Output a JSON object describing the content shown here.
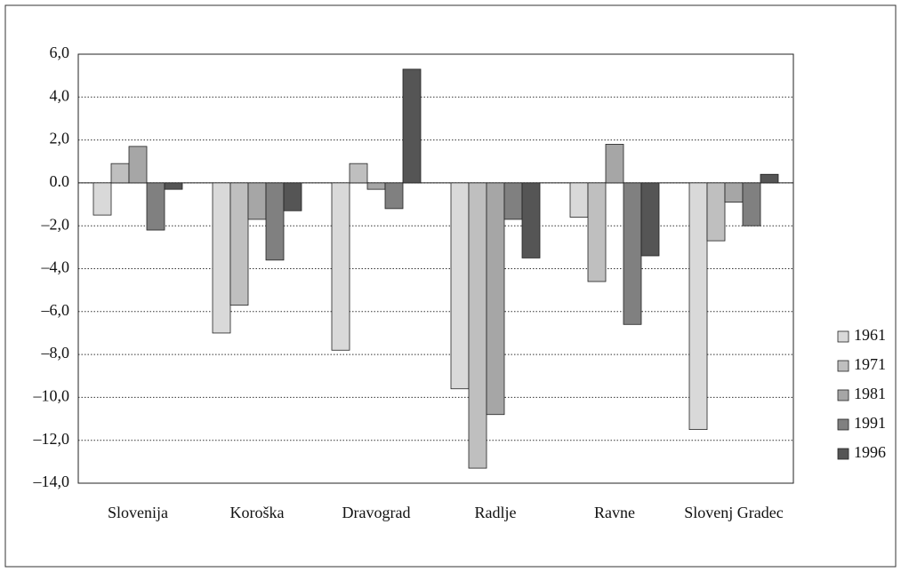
{
  "chart_data": {
    "type": "bar",
    "categories": [
      "Slovenija",
      "Koroška",
      "Dravograd",
      "Radlje",
      "Ravne",
      "Slovenj Gradec"
    ],
    "series": [
      {
        "name": "1961",
        "color": "#d9d9d9",
        "values": [
          -1.5,
          -7.0,
          -7.8,
          -9.6,
          -1.6,
          -11.5
        ]
      },
      {
        "name": "1971",
        "color": "#bfbfbf",
        "values": [
          0.9,
          -5.7,
          0.9,
          -13.3,
          -4.6,
          -2.7
        ]
      },
      {
        "name": "1981",
        "color": "#a6a6a6",
        "values": [
          1.7,
          -1.7,
          -0.3,
          -10.8,
          1.8,
          -0.9
        ]
      },
      {
        "name": "1991",
        "color": "#808080",
        "values": [
          -2.2,
          -3.6,
          -1.2,
          -1.7,
          -6.6,
          -2.0
        ]
      },
      {
        "name": "1996",
        "color": "#555555",
        "values": [
          -0.3,
          -1.3,
          5.3,
          -3.5,
          -3.4,
          0.4
        ]
      }
    ],
    "ylim": [
      -14,
      6
    ],
    "yticks": [
      {
        "value": 6,
        "label": "6,0"
      },
      {
        "value": 4,
        "label": "4,0"
      },
      {
        "value": 2,
        "label": "2,0"
      },
      {
        "value": 0,
        "label": "0.0"
      },
      {
        "value": -2,
        "label": "–2,0"
      },
      {
        "value": -4,
        "label": "–4,0"
      },
      {
        "value": -6,
        "label": "–6,0"
      },
      {
        "value": -8,
        "label": "–8,0"
      },
      {
        "value": -10,
        "label": "–10,0"
      },
      {
        "value": -12,
        "label": "–12,0"
      },
      {
        "value": -14,
        "label": "–14,0"
      }
    ],
    "grid": true,
    "legend": "right"
  }
}
